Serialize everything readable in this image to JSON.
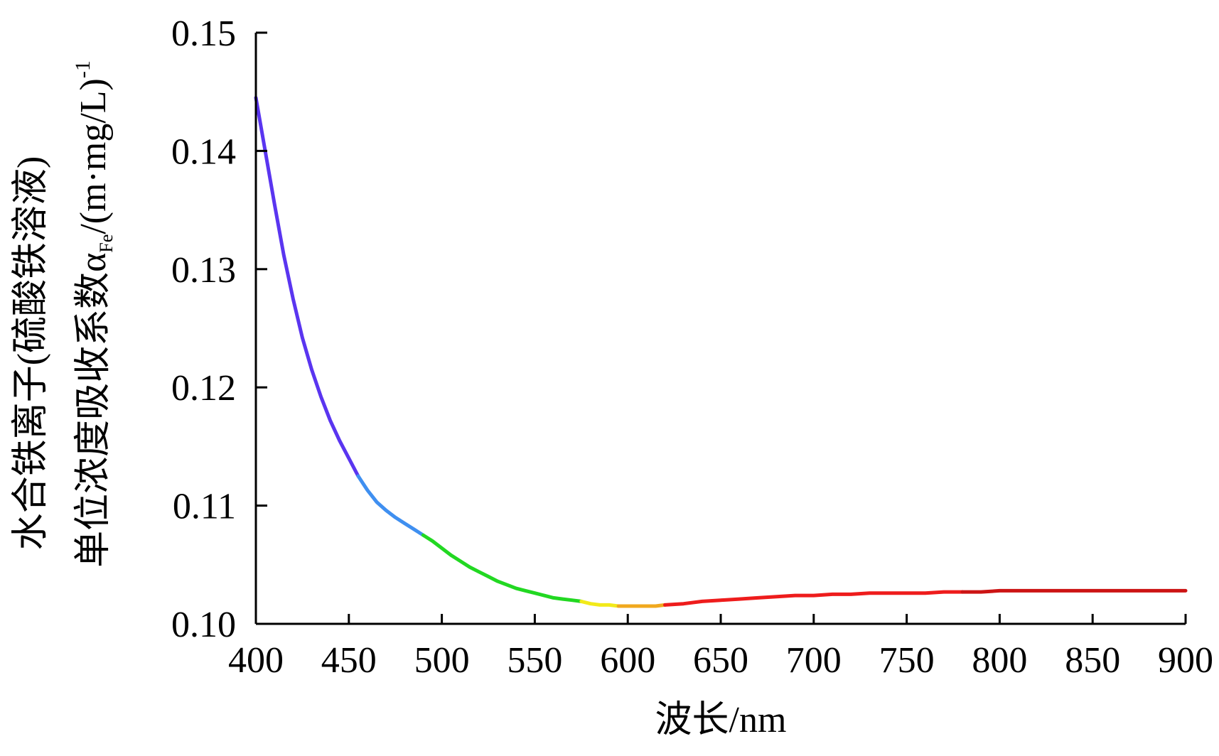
{
  "chart_data": {
    "type": "line",
    "title": "",
    "xlabel": "波长/nm",
    "ylabel_line1": "水合铁离子(硫酸铁溶液)",
    "ylabel_line2": {
      "main": "单位浓度吸收系数α",
      "subscript": "Fe",
      "unit": "/(m·mg/L)",
      "superscript": "-1"
    },
    "xlim": [
      400,
      900
    ],
    "ylim": [
      0.1,
      0.15
    ],
    "x_ticks": [
      "400",
      "450",
      "500",
      "550",
      "600",
      "650",
      "700",
      "750",
      "800",
      "850",
      "900"
    ],
    "y_ticks": [
      "0.10",
      "0.11",
      "0.12",
      "0.13",
      "0.14",
      "0.15"
    ],
    "grid": false,
    "legend": "none",
    "series": [
      {
        "x": [
          400,
          405,
          410,
          415,
          420,
          425,
          430,
          435,
          440,
          445,
          450,
          455,
          460,
          465,
          470,
          475,
          480,
          485,
          490,
          495,
          500,
          505,
          510,
          515,
          520,
          525,
          530,
          535,
          540,
          545,
          550,
          555,
          560,
          565,
          570,
          575,
          580,
          585,
          590,
          595,
          600,
          605,
          610,
          615,
          620,
          630,
          640,
          650,
          660,
          670,
          680,
          690,
          700,
          710,
          720,
          730,
          740,
          750,
          760,
          770,
          780,
          790,
          800,
          810,
          820,
          830,
          840,
          850,
          860,
          870,
          880,
          890,
          900
        ],
        "y": [
          0.1445,
          0.14,
          0.1355,
          0.1312,
          0.1275,
          0.1242,
          0.1215,
          0.1192,
          0.1172,
          0.1155,
          0.114,
          0.1125,
          0.1113,
          0.1103,
          0.1096,
          0.109,
          0.1085,
          0.108,
          0.1075,
          0.107,
          0.1064,
          0.1058,
          0.1053,
          0.1048,
          0.1044,
          0.104,
          0.1036,
          0.1033,
          0.103,
          0.1028,
          0.1026,
          0.1024,
          0.1022,
          0.1021,
          0.102,
          0.1019,
          0.1017,
          0.1016,
          0.1016,
          0.1015,
          0.1015,
          0.1015,
          0.1015,
          0.1015,
          0.1016,
          0.1017,
          0.1019,
          0.102,
          0.1021,
          0.1022,
          0.1023,
          0.1024,
          0.1024,
          0.1025,
          0.1025,
          0.1026,
          0.1026,
          0.1026,
          0.1026,
          0.1027,
          0.1027,
          0.1027,
          0.1028,
          0.1028,
          0.1028,
          0.1028,
          0.1028,
          0.1028,
          0.1028,
          0.1028,
          0.1028,
          0.1028,
          0.1028
        ]
      }
    ],
    "color_bands": [
      {
        "from": 400,
        "to": 455,
        "color": "#5a35f0"
      },
      {
        "from": 455,
        "to": 490,
        "color": "#3f8ff0"
      },
      {
        "from": 490,
        "to": 575,
        "color": "#22d822"
      },
      {
        "from": 575,
        "to": 595,
        "color": "#f2ea1a"
      },
      {
        "from": 595,
        "to": 620,
        "color": "#f0a81e"
      },
      {
        "from": 620,
        "to": 780,
        "color": "#ee1c1c"
      },
      {
        "from": 780,
        "to": 900,
        "color": "#cc1414"
      }
    ]
  }
}
